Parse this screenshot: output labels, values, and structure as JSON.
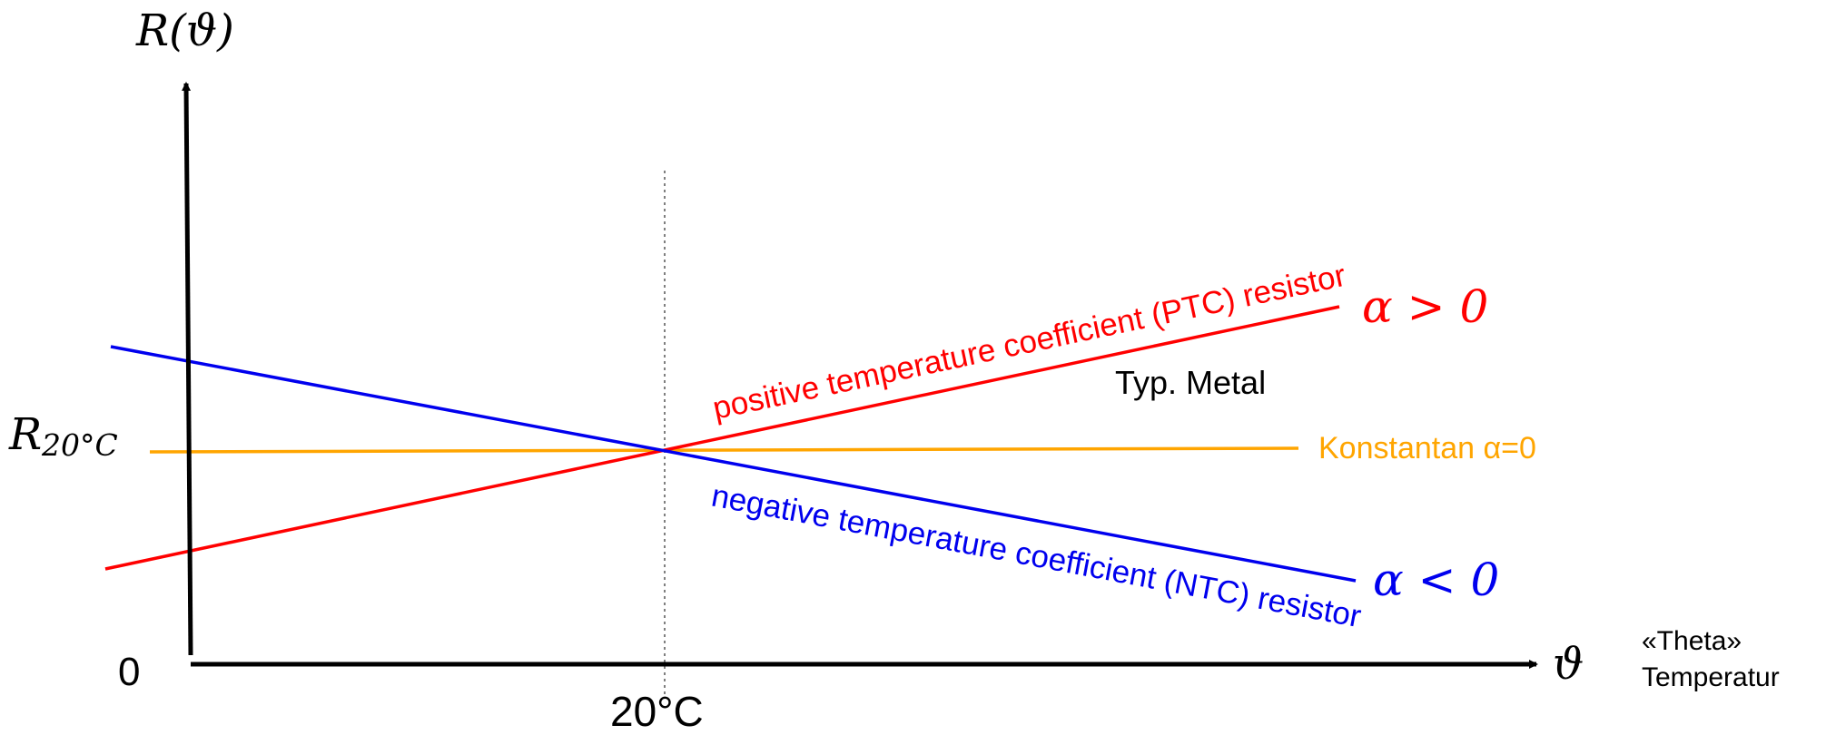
{
  "diagram": {
    "y_axis_label": "R(ϑ)",
    "x_axis_label": "ϑ",
    "origin_label": "0",
    "ref_label_main": "R",
    "ref_label_sub": "20°C",
    "x_tick_label": "20°C",
    "theta_name": "«Theta»",
    "theta_word": "Temperatur",
    "ptc": {
      "label": "positive temperature coefficient  (PTC) resistor",
      "alpha": "α > 0",
      "example": "Typ. Metal",
      "color": "#ff0000"
    },
    "ntc": {
      "label": "negative temperature coefficient (NTC) resistor",
      "alpha": "α < 0",
      "color": "#0000ee"
    },
    "konstantan": {
      "label": "Konstantan α=0",
      "color": "#ffa500"
    },
    "axis_color": "#000000",
    "reference_line_color": "#555555"
  }
}
